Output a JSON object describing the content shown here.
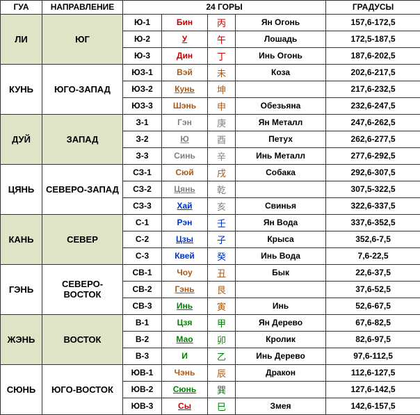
{
  "headers": {
    "gua": "ГУА",
    "dir": "НАПРАВЛЕНИЕ",
    "mountains": "24 ГОРЫ",
    "degrees": "ГРАДУСЫ"
  },
  "colors": {
    "red": "#cc0000",
    "brown": "#a55a1a",
    "gray": "#808080",
    "blue": "#0033cc",
    "green": "#008000",
    "tint_bg": "#e0e4c7"
  },
  "col_widths": {
    "gua": 60,
    "dir": 116,
    "code": 56,
    "name": 66,
    "cjk": 40,
    "desc": 130,
    "deg": 136
  },
  "sections": [
    {
      "gua": "ЛИ",
      "dir": "ЮГ",
      "tint": true,
      "rows": [
        {
          "code": "Ю-1",
          "name": "Бин",
          "name_color": "red",
          "cjk": "丙",
          "cjk_color": "red",
          "desc": "Ян Огонь",
          "deg": "157,6-172,5"
        },
        {
          "code": "Ю-2",
          "name": "У",
          "name_color": "red",
          "underline": true,
          "cjk": "午",
          "cjk_color": "red",
          "desc": "Лошадь",
          "deg": "172,5-187,5"
        },
        {
          "code": "Ю-3",
          "name": "Дин",
          "name_color": "red",
          "cjk": "丁",
          "cjk_color": "red",
          "desc": "Инь Огонь",
          "deg": "187,6-202,5"
        }
      ]
    },
    {
      "gua": "КУНЬ",
      "dir": "ЮГО-ЗАПАД",
      "tint": false,
      "rows": [
        {
          "code": "ЮЗ-1",
          "name": "Вэй",
          "name_color": "brown",
          "cjk": "未",
          "cjk_color": "brown",
          "desc": "Коза",
          "deg": "202,6-217,5"
        },
        {
          "code": "ЮЗ-2",
          "name": "Кунь",
          "name_color": "brown",
          "underline": true,
          "cjk": "坤",
          "cjk_color": "brown",
          "desc": "",
          "deg": "217,6-232,5"
        },
        {
          "code": "ЮЗ-3",
          "name": "Шэнь",
          "name_color": "brown",
          "cjk": "申",
          "cjk_color": "brown",
          "desc": "Обезьяна",
          "deg": "232,6-247,5"
        }
      ]
    },
    {
      "gua": "ДУЙ",
      "dir": "ЗАПАД",
      "tint": true,
      "rows": [
        {
          "code": "З-1",
          "name": "Гэн",
          "name_color": "gray",
          "cjk": "庚",
          "cjk_color": "gray",
          "desc": "Ян Металл",
          "deg": "247,6-262,5"
        },
        {
          "code": "З-2",
          "name": "Ю",
          "name_color": "gray",
          "underline": true,
          "cjk": "酉",
          "cjk_color": "gray",
          "desc": "Петух",
          "deg": "262,6-277,5"
        },
        {
          "code": "З-3",
          "name": "Синь",
          "name_color": "gray",
          "cjk": "辛",
          "cjk_color": "gray",
          "desc": "Инь Металл",
          "deg": "277,6-292,5"
        }
      ]
    },
    {
      "gua": "ЦЯНЬ",
      "dir": "СЕВЕРО-ЗАПАД",
      "tint": false,
      "rows": [
        {
          "code": "СЗ-1",
          "name": "Сюй",
          "name_color": "brown",
          "cjk": "戌",
          "cjk_color": "brown",
          "desc": "Собака",
          "deg": "292,6-307,5"
        },
        {
          "code": "СЗ-2",
          "name": "Цянь",
          "name_color": "gray",
          "underline": true,
          "cjk": "乾",
          "cjk_color": "gray",
          "desc": "",
          "deg": "307,5-322,5"
        },
        {
          "code": "СЗ-3",
          "name": "Хай",
          "name_color": "blue",
          "underline": true,
          "cjk": "亥",
          "cjk_color": "gray",
          "desc": "Свинья",
          "deg": "322,6-337,5"
        }
      ]
    },
    {
      "gua": "КАНЬ",
      "dir": "СЕВЕР",
      "tint": true,
      "rows": [
        {
          "code": "С-1",
          "name": "Рэн",
          "name_color": "blue",
          "cjk": "壬",
          "cjk_color": "blue",
          "desc": "Ян Вода",
          "deg": "337,6-352,5"
        },
        {
          "code": "С-2",
          "name": "Цзы",
          "name_color": "blue",
          "underline": true,
          "cjk": "子",
          "cjk_color": "blue",
          "desc": "Крыса",
          "deg": "352,6-7,5"
        },
        {
          "code": "С-3",
          "name": "Квей",
          "name_color": "blue",
          "cjk": "癸",
          "cjk_color": "blue",
          "desc": "Инь Вода",
          "deg": "7,6-22,5"
        }
      ]
    },
    {
      "gua": "ГЭНЬ",
      "dir": "СЕВЕРО-ВОСТОК",
      "tint": false,
      "rows": [
        {
          "code": "СВ-1",
          "name": "Чоу",
          "name_color": "brown",
          "cjk": "丑",
          "cjk_color": "brown",
          "desc": "Бык",
          "deg": "22,6-37,5"
        },
        {
          "code": "СВ-2",
          "name": "Гэнь",
          "name_color": "brown",
          "underline": true,
          "cjk": "艮",
          "cjk_color": "brown",
          "desc": "",
          "deg": "37,6-52,5"
        },
        {
          "code": "СВ-3",
          "name": "Инь",
          "name_color": "green",
          "underline": true,
          "cjk": "寅",
          "cjk_color": "brown",
          "desc": "Инь",
          "deg": "52,6-67,5"
        }
      ]
    },
    {
      "gua": "ЖЭНЬ",
      "dir": "ВОСТОК",
      "tint": true,
      "rows": [
        {
          "code": "В-1",
          "name": "Цзя",
          "name_color": "green",
          "cjk": "甲",
          "cjk_color": "green",
          "desc": "Ян Дерево",
          "deg": "67,6-82,5"
        },
        {
          "code": "В-2",
          "name": "Мао",
          "name_color": "green",
          "underline": true,
          "cjk": "卯",
          "cjk_color": "green",
          "desc": "Кролик",
          "deg": "82,6-97,5"
        },
        {
          "code": "В-3",
          "name": "И",
          "name_color": "green",
          "cjk": "乙",
          "cjk_color": "green",
          "desc": "Инь Дерево",
          "deg": "97,6-112,5"
        }
      ]
    },
    {
      "gua": "СЮНЬ",
      "dir": "ЮГО-ВОСТОК",
      "tint": false,
      "rows": [
        {
          "code": "ЮВ-1",
          "name": "Чэнь",
          "name_color": "brown",
          "cjk": "辰",
          "cjk_color": "brown",
          "desc": "Дракон",
          "deg": "112,6-127,5"
        },
        {
          "code": "ЮВ-2",
          "name": "Сюнь",
          "name_color": "green",
          "underline": true,
          "cjk": "巽",
          "cjk_color": "green",
          "desc": "",
          "deg": "127,6-142,5"
        },
        {
          "code": "ЮВ-3",
          "name": "Сы",
          "name_color": "red",
          "underline": true,
          "cjk": "巳",
          "cjk_color": "green",
          "desc": "Змея",
          "deg": "142,6-157,5"
        }
      ]
    }
  ]
}
